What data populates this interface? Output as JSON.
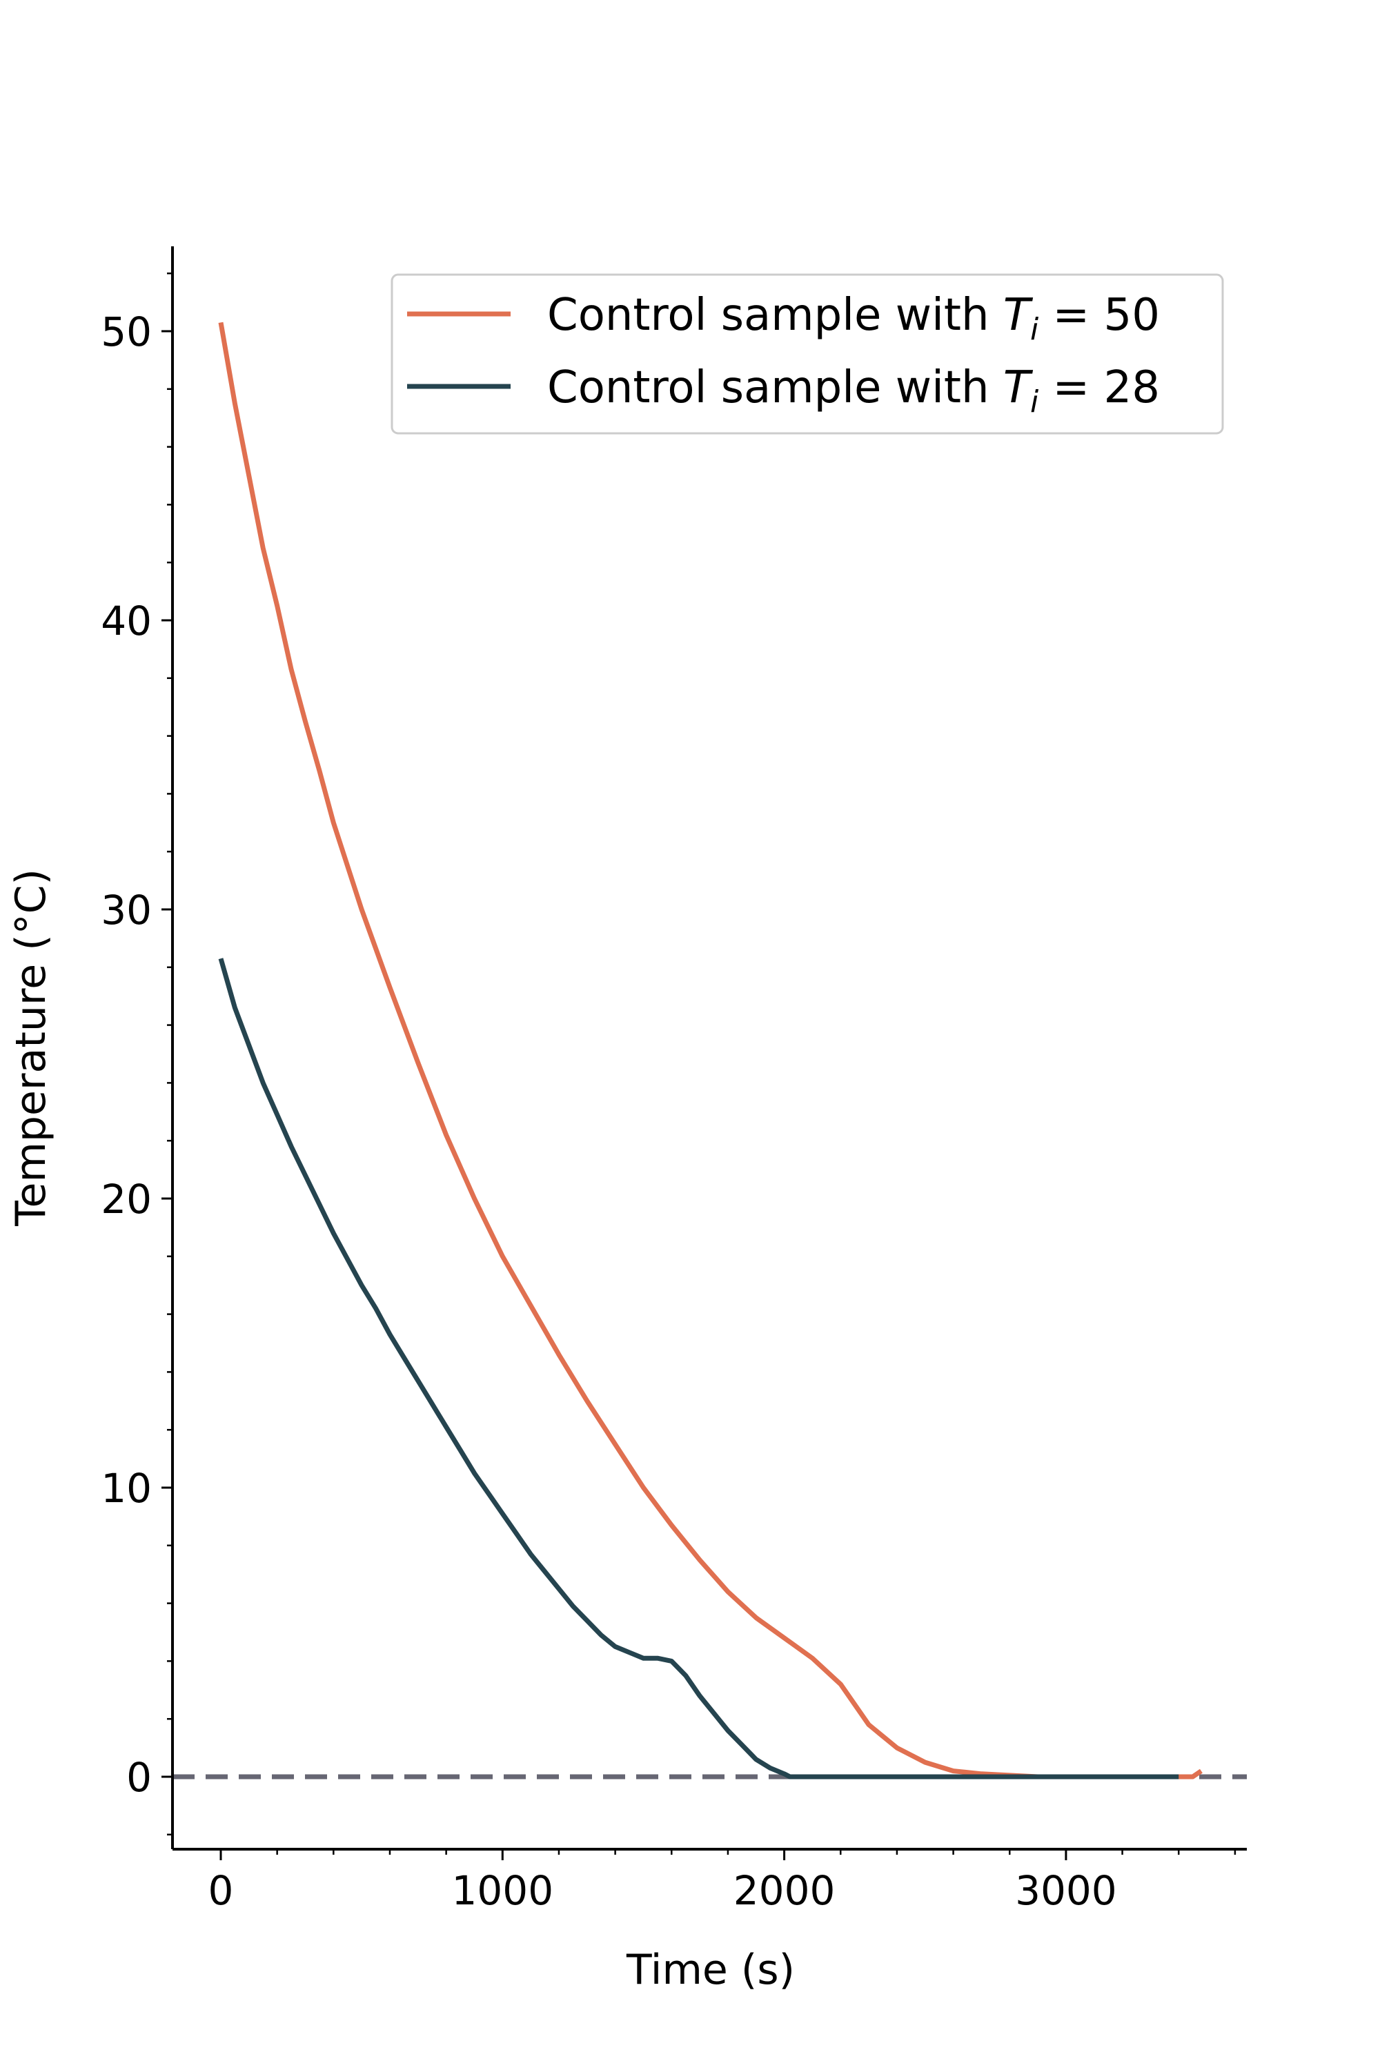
{
  "chart_data": {
    "type": "line",
    "title": "",
    "xlabel": "Time (s)",
    "ylabel": "Temperature (°C)",
    "xlim": [
      -170,
      3640
    ],
    "ylim": [
      -2.5,
      53
    ],
    "x_ticks": [
      0,
      1000,
      2000,
      3000
    ],
    "y_ticks": [
      0,
      10,
      20,
      30,
      40,
      50
    ],
    "x_tick_labels": [
      "0",
      "1000",
      "2000",
      "3000"
    ],
    "y_tick_labels": [
      "0",
      "10",
      "20",
      "30",
      "40",
      "50"
    ],
    "x_minor_step": 200,
    "y_minor_step": 2,
    "grid": false,
    "legend_position": "top-right",
    "reference_line": {
      "y": 0,
      "style": "dashed",
      "color": "#666673"
    },
    "series": [
      {
        "name": "Control sample with T_i = 50",
        "legend_prefix": "Control sample with ",
        "legend_var": "T",
        "legend_sub": "i",
        "legend_suffix": " = 50",
        "color": "#e07050",
        "x": [
          0,
          50,
          100,
          150,
          200,
          250,
          300,
          350,
          400,
          450,
          500,
          600,
          700,
          800,
          900,
          1000,
          1100,
          1200,
          1300,
          1400,
          1500,
          1600,
          1700,
          1800,
          1900,
          2000,
          2100,
          2200,
          2250,
          2300,
          2400,
          2500,
          2600,
          2700,
          2800,
          2900,
          3000,
          3100,
          3200,
          3300,
          3400,
          3450,
          3480
        ],
        "y": [
          50.3,
          47.5,
          45,
          42.5,
          40.5,
          38.3,
          36.5,
          34.8,
          33,
          31.5,
          30,
          27.3,
          24.7,
          22.2,
          20,
          18,
          16.3,
          14.6,
          13,
          11.5,
          10,
          8.7,
          7.5,
          6.4,
          5.5,
          4.8,
          4.1,
          3.2,
          2.5,
          1.8,
          1.0,
          0.5,
          0.2,
          0.1,
          0.05,
          0,
          0,
          0,
          0,
          0,
          0,
          0,
          0.2
        ]
      },
      {
        "name": "Control sample with T_i = 28",
        "legend_prefix": "Control sample with ",
        "legend_var": "T",
        "legend_sub": "i",
        "legend_suffix": " = 28",
        "color": "#25444f",
        "x": [
          0,
          50,
          100,
          150,
          200,
          250,
          300,
          350,
          400,
          450,
          500,
          550,
          600,
          650,
          700,
          750,
          800,
          850,
          900,
          950,
          1000,
          1050,
          1100,
          1150,
          1200,
          1250,
          1300,
          1350,
          1400,
          1450,
          1500,
          1550,
          1600,
          1650,
          1700,
          1750,
          1800,
          1850,
          1900,
          1950,
          2000,
          2020,
          2100,
          2200,
          2300,
          2400,
          2500,
          2600,
          2700,
          2800,
          2900,
          3000,
          3100,
          3200,
          3300,
          3400
        ],
        "y": [
          28.3,
          26.6,
          25.3,
          24,
          22.9,
          21.8,
          20.8,
          19.8,
          18.8,
          17.9,
          17,
          16.2,
          15.3,
          14.5,
          13.7,
          12.9,
          12.1,
          11.3,
          10.5,
          9.8,
          9.1,
          8.4,
          7.7,
          7.1,
          6.5,
          5.9,
          5.4,
          4.9,
          4.5,
          4.3,
          4.1,
          4.1,
          4.0,
          3.5,
          2.8,
          2.2,
          1.6,
          1.1,
          0.6,
          0.3,
          0.1,
          0,
          0,
          0,
          0,
          0,
          0,
          0,
          0,
          0,
          0,
          0,
          0,
          0,
          0,
          0
        ]
      }
    ]
  }
}
